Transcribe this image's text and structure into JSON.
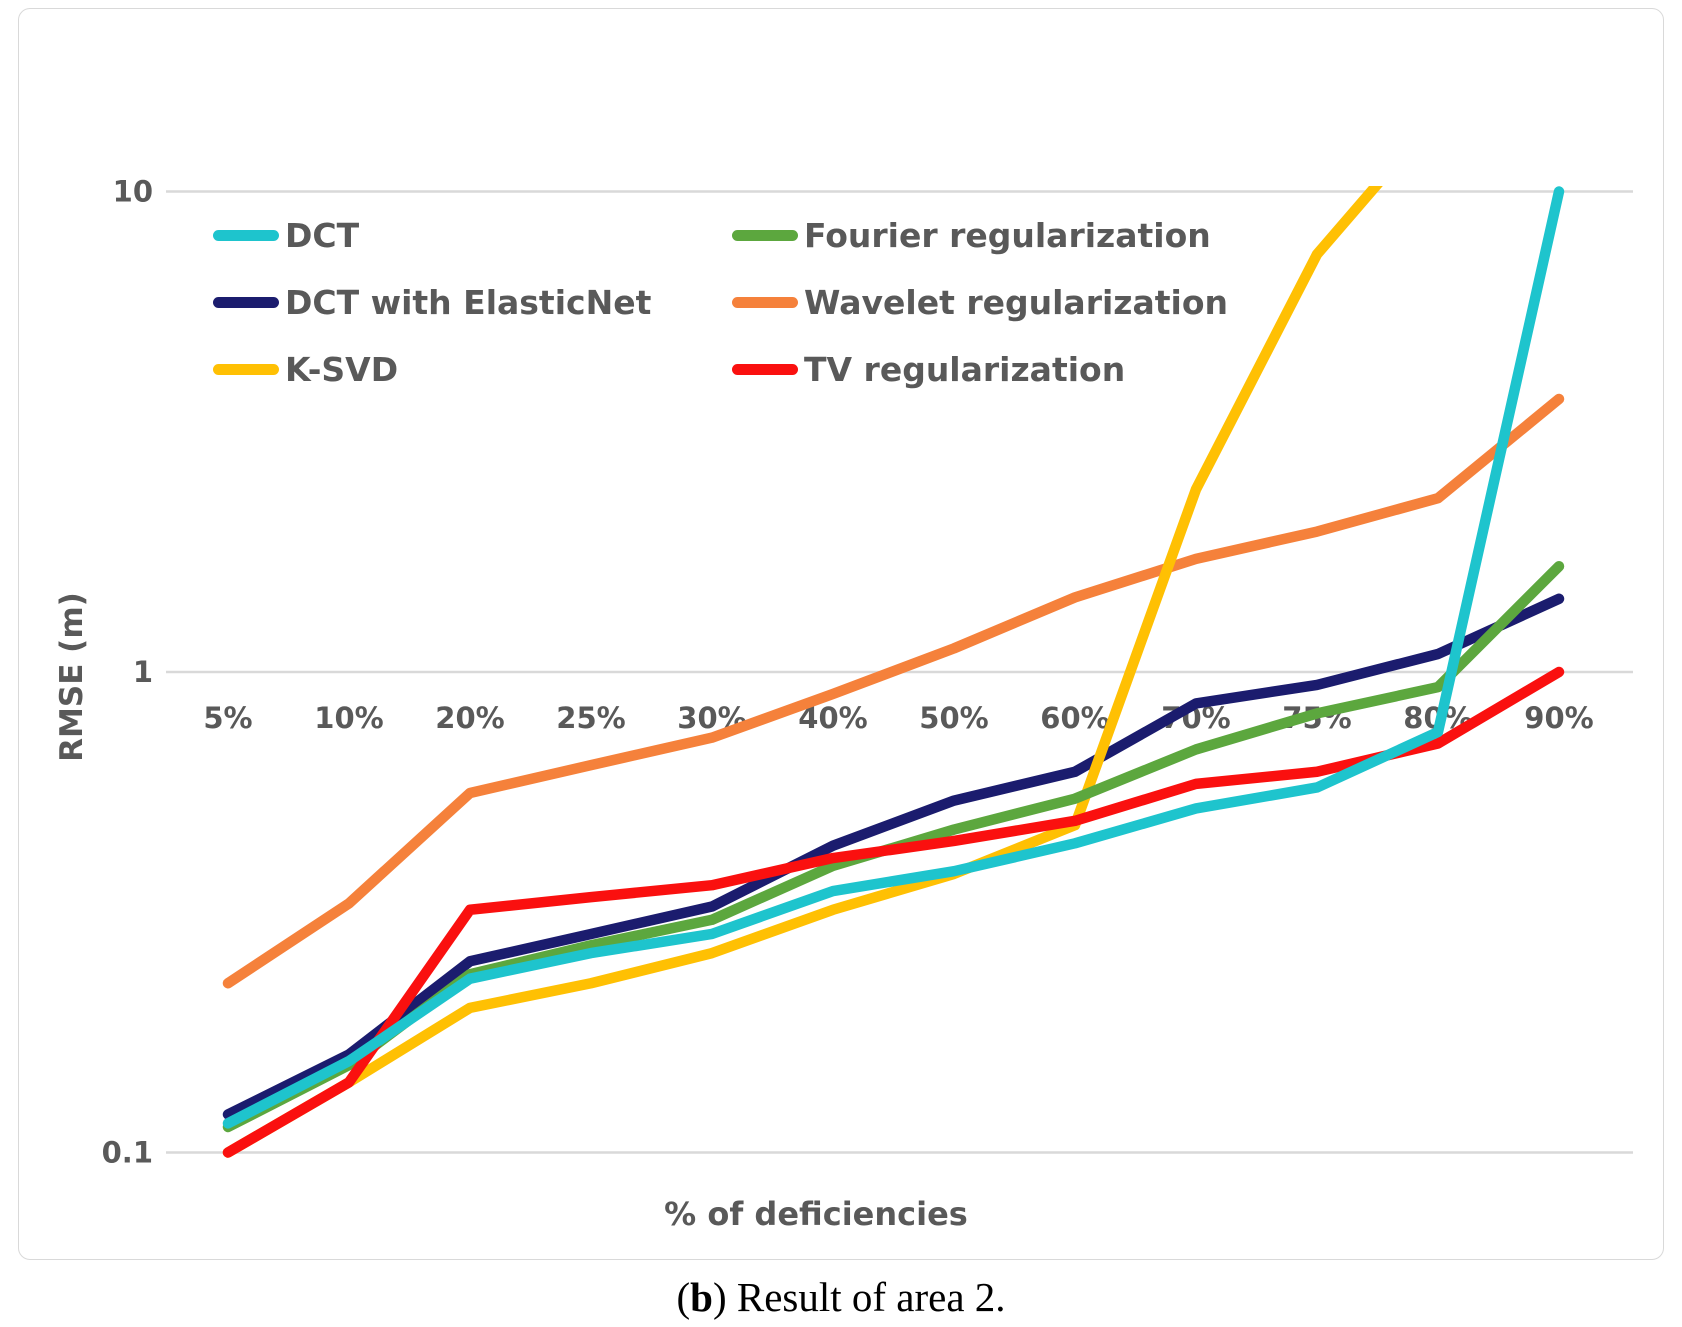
{
  "caption": {
    "paren_open": "(",
    "bold_letter": "b",
    "text_after": ") Result of area 2."
  },
  "chart_data": {
    "type": "line",
    "title": "",
    "xlabel": "% of deficiencies",
    "ylabel": "RMSE (m)",
    "y_scale": "log",
    "ylim": [
      0.1,
      10
    ],
    "grid": "horizontal major gridlines only",
    "legend_position": "top-left, two columns inside plot",
    "y_ticks": [
      {
        "label": "10",
        "value": 10
      },
      {
        "label": "1",
        "value": 1
      },
      {
        "label": "0.1",
        "value": 0.1
      }
    ],
    "categories": [
      "5%",
      "10%",
      "20%",
      "25%",
      "30%",
      "40%",
      "50%",
      "60%",
      "70%",
      "75%",
      "80%",
      "90%"
    ],
    "series": [
      {
        "name": "DCT",
        "color": "#1ec4cd",
        "values": [
          0.115,
          0.155,
          0.23,
          0.26,
          0.285,
          0.35,
          0.385,
          0.44,
          0.52,
          0.575,
          0.75,
          10
        ]
      },
      {
        "name": "DCT with ElasticNet",
        "color": "#1b1c6e",
        "values": [
          0.12,
          0.16,
          0.25,
          0.285,
          0.325,
          0.435,
          0.54,
          0.62,
          0.86,
          0.94,
          1.09,
          1.42
        ]
      },
      {
        "name": "K-SVD",
        "color": "#ffc003",
        "values": [
          0.1,
          0.14,
          0.2,
          0.225,
          0.26,
          0.32,
          0.38,
          0.48,
          2.4,
          7.4,
          14.5,
          null
        ],
        "note": "rises above axis max (10) between 75% and 80%; 80% value extrapolated from visible slope, 90% not visible"
      },
      {
        "name": "Fourier regularization",
        "color": "#5ca73e",
        "values": [
          0.113,
          0.152,
          0.235,
          0.27,
          0.305,
          0.395,
          0.47,
          0.545,
          0.69,
          0.82,
          0.93,
          1.66
        ]
      },
      {
        "name": "Wavelet regularization",
        "color": "#f5813b",
        "values": [
          0.225,
          0.33,
          0.56,
          0.64,
          0.73,
          0.9,
          1.12,
          1.43,
          1.72,
          1.96,
          2.3,
          3.7
        ]
      },
      {
        "name": "TV regularization",
        "color": "#fa100f",
        "values": [
          0.1,
          0.14,
          0.32,
          0.34,
          0.36,
          0.41,
          0.445,
          0.49,
          0.585,
          0.62,
          0.71,
          1.0
        ]
      }
    ],
    "colors": {
      "tick_label_gray": "#595959",
      "gridline_gray": "#d9d9d9",
      "figure_border_gray": "#d9d9d9"
    }
  }
}
